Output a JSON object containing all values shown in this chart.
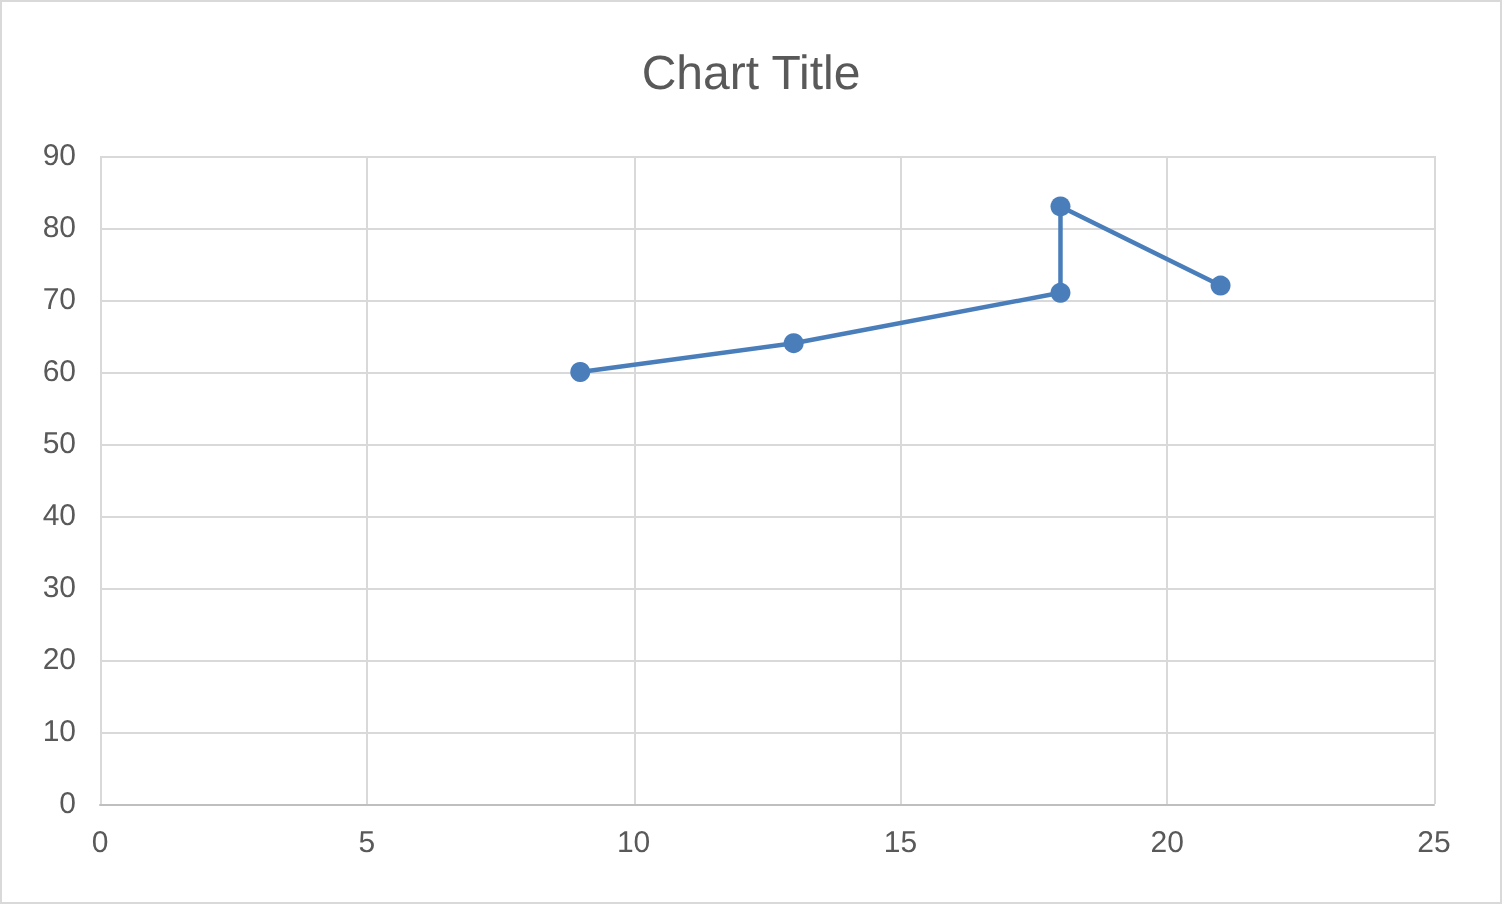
{
  "chart_data": {
    "type": "line",
    "title": "Chart Title",
    "series": [
      {
        "color": "#4a7ebb",
        "x": [
          9,
          13,
          18,
          18,
          21
        ],
        "values": [
          60,
          64,
          71,
          83,
          72
        ]
      }
    ],
    "xlim": [
      0,
      25
    ],
    "xticks": [
      0,
      5,
      10,
      15,
      20,
      25
    ],
    "ylim": [
      0,
      90
    ],
    "yticks": [
      0,
      10,
      20,
      30,
      40,
      50,
      60,
      70,
      80,
      90
    ],
    "grid": true,
    "marker": "circle",
    "line_style": "solid"
  }
}
